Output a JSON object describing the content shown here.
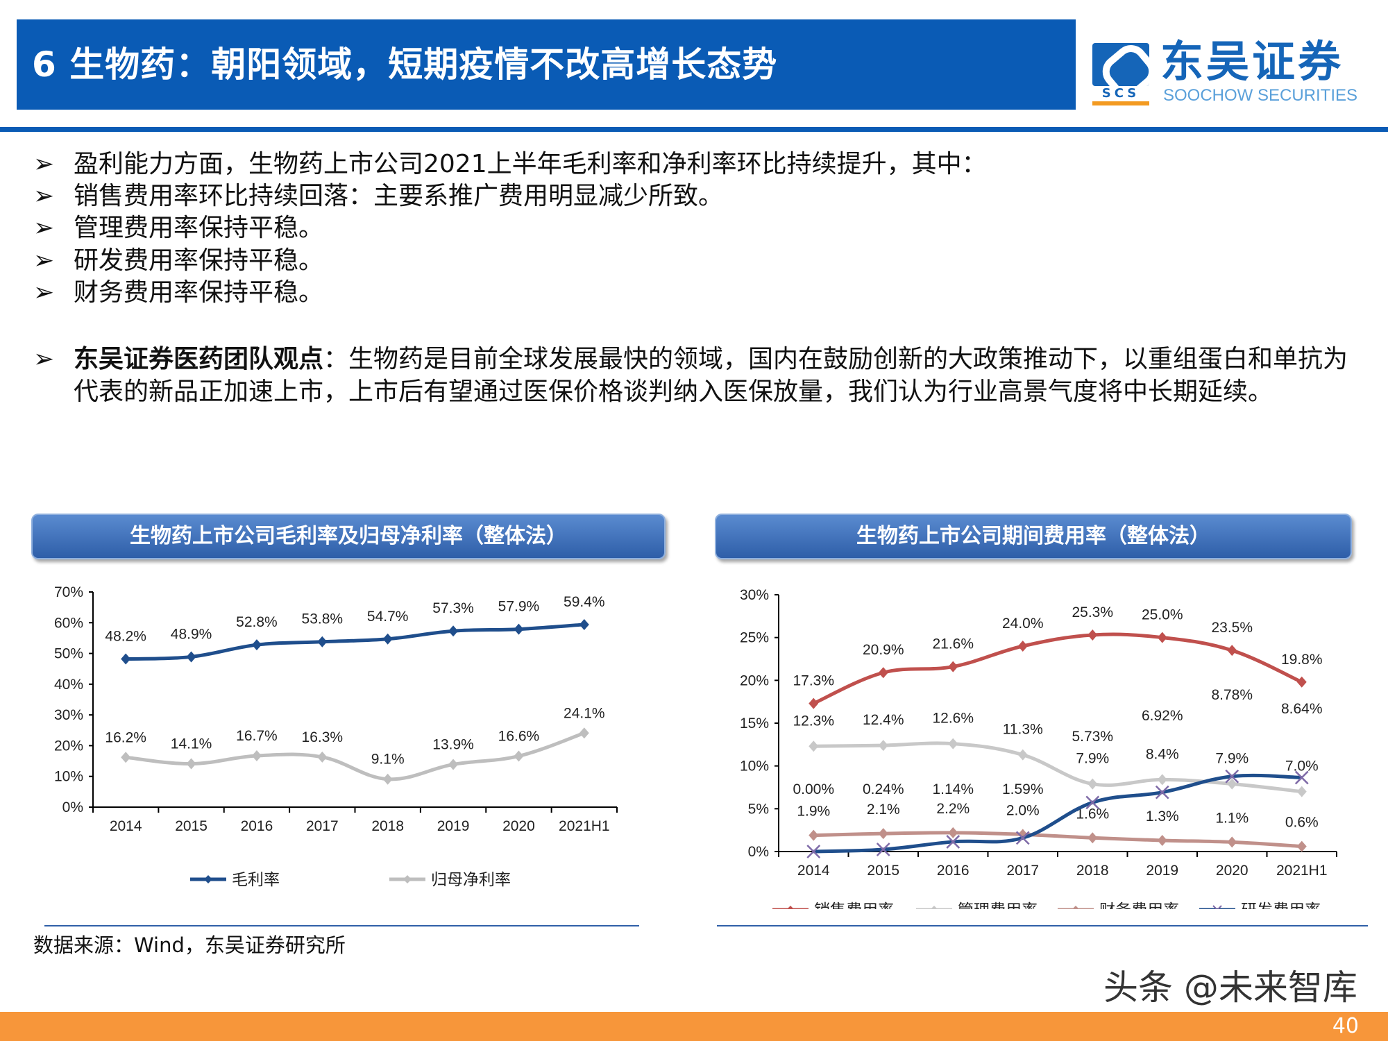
{
  "header": {
    "title": "6 生物药：朝阳领域，短期疫情不改高增长态势"
  },
  "logo": {
    "scs": "SCS",
    "cn": "东吴证券",
    "en": "SOOCHOW SECURITIES"
  },
  "bullets": [
    "盈利能力方面，生物药上市公司2021上半年毛利率和净利率环比持续提升，其中：",
    "销售费用率环比持续回落：主要系推广费用明显减少所致。",
    "管理费用率保持平稳。",
    "研发费用率保持平稳。",
    "财务费用率保持平稳。"
  ],
  "bullet_glyph": "➢",
  "opinion": {
    "bold": "东吴证券医药团队观点",
    "text": "：生物药是目前全球发展最快的领域，国内在鼓励创新的大政策推动下，以重组蛋白和单抗为代表的新品正加速上市，上市后有望通过医保价格谈判纳入医保放量，我们认为行业高景气度将中长期延续。"
  },
  "source": "数据来源：Wind，东吴证券研究所",
  "watermark": "头条 @未来智库",
  "page_number": "40",
  "chart_data": [
    {
      "type": "line",
      "title": "生物药上市公司毛利率及归母净利率（整体法）",
      "categories": [
        "2014",
        "2015",
        "2016",
        "2017",
        "2018",
        "2019",
        "2020",
        "2021H1"
      ],
      "ylim": [
        0,
        70
      ],
      "yticks": [
        "0%",
        "10%",
        "20%",
        "30%",
        "40%",
        "50%",
        "60%",
        "70%"
      ],
      "legend": "bottom",
      "series": [
        {
          "name": "毛利率",
          "color": "#1F4E8C",
          "marker": "diamond",
          "values": [
            48.2,
            48.9,
            52.8,
            53.8,
            54.7,
            57.3,
            57.9,
            59.4
          ],
          "labels": [
            "48.2%",
            "48.9%",
            "52.8%",
            "53.8%",
            "54.7%",
            "57.3%",
            "57.9%",
            "59.4%"
          ]
        },
        {
          "name": "归母净利率",
          "color": "#BEBEBE",
          "marker": "diamond",
          "values": [
            16.2,
            14.1,
            16.7,
            16.3,
            9.1,
            13.9,
            16.6,
            24.1
          ],
          "labels": [
            "16.2%",
            "14.1%",
            "16.7%",
            "16.3%",
            "9.1%",
            "13.9%",
            "16.6%",
            "24.1%"
          ]
        }
      ]
    },
    {
      "type": "line",
      "title": "生物药上市公司期间费用率（整体法）",
      "categories": [
        "2014",
        "2015",
        "2016",
        "2017",
        "2018",
        "2019",
        "2020",
        "2021H1"
      ],
      "ylim": [
        0,
        30
      ],
      "yticks": [
        "0%",
        "5%",
        "10%",
        "15%",
        "20%",
        "25%",
        "30%"
      ],
      "legend": "bottom",
      "series": [
        {
          "name": "销售费用率",
          "color": "#C0504D",
          "marker": "diamond",
          "values": [
            17.3,
            20.9,
            21.6,
            24.0,
            25.3,
            25.0,
            23.5,
            19.8
          ],
          "labels": [
            "17.3%",
            "20.9%",
            "21.6%",
            "24.0%",
            "25.3%",
            "25.0%",
            "23.5%",
            "19.8%"
          ]
        },
        {
          "name": "管理费用率",
          "color": "#C8C8C8",
          "marker": "diamond",
          "values": [
            12.3,
            12.4,
            12.6,
            11.3,
            7.9,
            8.4,
            7.9,
            7.0
          ],
          "labels": [
            "12.3%",
            "12.4%",
            "12.6%",
            "11.3%",
            "7.9%",
            "8.4%",
            "7.9%",
            "7.0%"
          ]
        },
        {
          "name": "财务费用率",
          "color": "#C0908A",
          "marker": "diamond",
          "values": [
            1.9,
            2.1,
            2.2,
            2.0,
            1.6,
            1.3,
            1.1,
            0.6
          ],
          "labels": [
            "1.9%",
            "2.1%",
            "2.2%",
            "2.0%",
            "1.6%",
            "1.3%",
            "1.1%",
            "0.6%"
          ]
        },
        {
          "name": "研发费用率",
          "color": "#1F4E8C",
          "marker": "x",
          "marker_color": "#7F6BA8",
          "values": [
            0.0,
            0.24,
            1.14,
            1.59,
            5.73,
            6.92,
            8.78,
            8.64
          ],
          "labels": [
            "0.00%",
            "0.24%",
            "1.14%",
            "1.59%",
            "5.73%",
            "6.92%",
            "8.78%",
            "8.64%"
          ]
        }
      ]
    }
  ]
}
